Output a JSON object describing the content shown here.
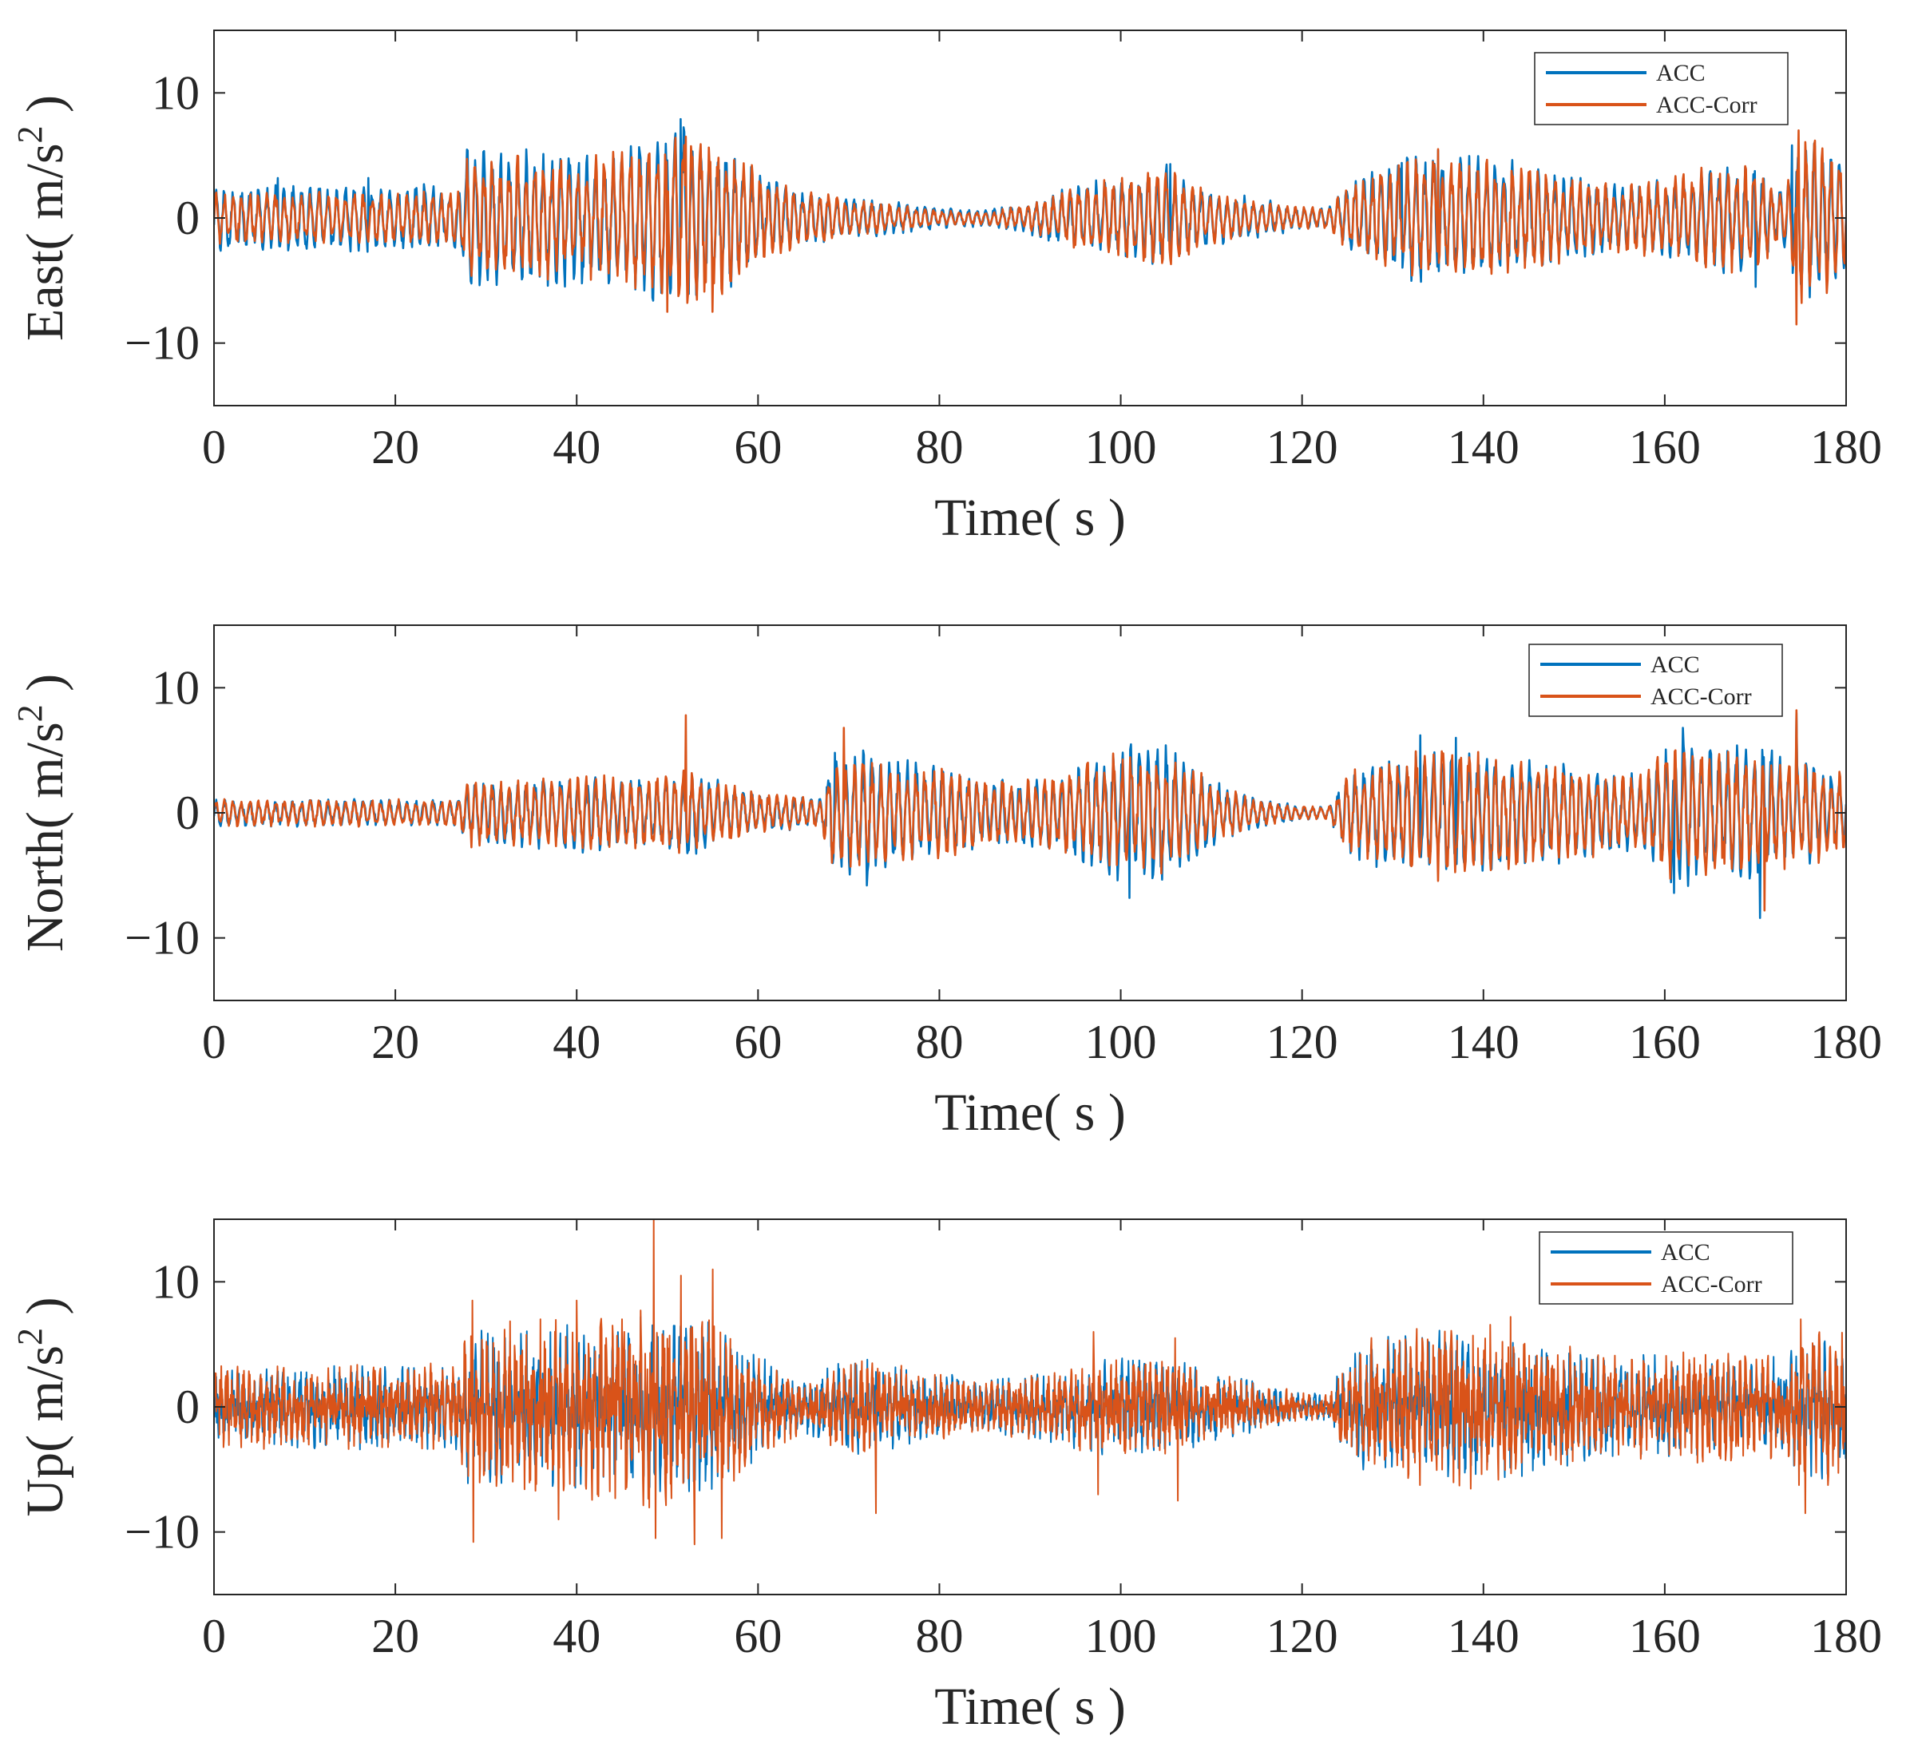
{
  "figure": {
    "panel_count": 3
  },
  "chart_data": [
    {
      "type": "line",
      "title": "",
      "xlabel": "Time( s )",
      "ylabel": "East( m/s² )",
      "ylabel_main": "East( m/s",
      "ylabel_sup": "2",
      "ylabel_end": " )",
      "xlim": [
        0,
        180
      ],
      "ylim": [
        -15,
        15
      ],
      "xticks": [
        0,
        20,
        40,
        60,
        80,
        100,
        120,
        140,
        160,
        180
      ],
      "yticks": [
        -10,
        0,
        10
      ],
      "ytick_labels": [
        "−10",
        "0",
        "10"
      ],
      "grid": false,
      "legend_position": "top-right",
      "series": [
        {
          "name": "ACC",
          "color": "#0072BD",
          "envelope": {
            "t": [
              0,
              5,
              10,
              15,
              20,
              27,
              28,
              35,
              40,
              45,
              50,
              52,
              55,
              60,
              65,
              70,
              75,
              80,
              85,
              90,
              95,
              100,
              105,
              110,
              115,
              120,
              123,
              125,
              130,
              135,
              140,
              145,
              150,
              155,
              160,
              165,
              170,
              173,
              175,
              180
            ],
            "amp": [
              2.5,
              2.5,
              2.5,
              2.5,
              2.5,
              2.5,
              5.2,
              5,
              5,
              5,
              6.5,
              7.5,
              6,
              3.5,
              2,
              1.5,
              1.2,
              0.8,
              0.6,
              1.2,
              2.5,
              3,
              4,
              2,
              1.5,
              0.8,
              0.8,
              2.5,
              4.5,
              5,
              4.5,
              4,
              3,
              2.5,
              3,
              4,
              4,
              2,
              6,
              5
            ]
          },
          "spikes": [
            [
              7,
              3.2
            ],
            [
              17,
              3.2
            ],
            [
              28,
              5.4
            ],
            [
              51.5,
              7.9
            ],
            [
              57,
              -5.5
            ],
            [
              105.5,
              4.3
            ],
            [
              131,
              4.4
            ],
            [
              135,
              5.4
            ],
            [
              170,
              -5.5
            ],
            [
              174,
              5.8
            ]
          ]
        },
        {
          "name": "ACC-Corr",
          "color": "#D95319",
          "envelope": {
            "t": [
              0,
              5,
              10,
              15,
              20,
              27,
              28,
              35,
              40,
              45,
              50,
              52,
              55,
              60,
              65,
              70,
              75,
              80,
              85,
              90,
              95,
              100,
              105,
              110,
              115,
              120,
              123,
              125,
              130,
              135,
              140,
              145,
              150,
              155,
              160,
              165,
              170,
              173,
              175,
              180
            ],
            "amp": [
              2,
              2,
              2,
              2,
              2,
              2,
              5,
              4.5,
              4.5,
              5,
              6,
              7,
              6,
              3.5,
              2,
              1.5,
              1,
              0.6,
              0.5,
              1,
              2.5,
              3,
              4,
              2,
              1.2,
              0.8,
              0.8,
              2.5,
              4,
              5,
              4.5,
              4,
              3,
              2.5,
              3,
              4,
              4,
              2,
              6.5,
              5
            ]
          },
          "spikes": [
            [
              52,
              6.5
            ],
            [
              50,
              -7.5
            ],
            [
              55,
              -7.5
            ],
            [
              174.8,
              7
            ],
            [
              174.5,
              -8.5
            ],
            [
              135,
              5.5
            ]
          ]
        }
      ]
    },
    {
      "type": "line",
      "title": "",
      "xlabel": "Time( s )",
      "ylabel": "North( m/s² )",
      "ylabel_main": "North( m/s",
      "ylabel_sup": "2",
      "ylabel_end": " )",
      "xlim": [
        0,
        180
      ],
      "ylim": [
        -15,
        15
      ],
      "xticks": [
        0,
        20,
        40,
        60,
        80,
        100,
        120,
        140,
        160,
        180
      ],
      "yticks": [
        -10,
        0,
        10
      ],
      "ytick_labels": [
        "−10",
        "0",
        "10"
      ],
      "grid": false,
      "legend_position": "top-right",
      "series": [
        {
          "name": "ACC",
          "color": "#0072BD",
          "envelope": {
            "t": [
              0,
              5,
              10,
              15,
              20,
              27,
              28,
              35,
              40,
              45,
              50,
              52,
              55,
              60,
              65,
              67,
              68,
              72,
              75,
              80,
              85,
              90,
              95,
              100,
              105,
              110,
              115,
              120,
              123,
              125,
              130,
              135,
              140,
              145,
              150,
              155,
              158,
              160,
              165,
              170,
              175,
              180
            ],
            "amp": [
              1,
              1,
              1,
              1,
              1,
              1,
              2.5,
              2.5,
              3,
              2.5,
              3,
              3.5,
              2.5,
              1.5,
              1.2,
              1.2,
              4.5,
              4.5,
              4,
              3.5,
              2.5,
              2.5,
              3.5,
              5,
              5,
              2.5,
              1.2,
              0.5,
              0.5,
              3,
              4.5,
              5,
              4.5,
              4,
              3.5,
              3,
              3,
              5.5,
              5,
              5,
              4,
              3
            ]
          },
          "spikes": [
            [
              68.5,
              4.8
            ],
            [
              72,
              -5.8
            ],
            [
              101,
              -6.8
            ],
            [
              105,
              5.4
            ],
            [
              133,
              6.2
            ],
            [
              137,
              6
            ],
            [
              161,
              -6.4
            ],
            [
              162,
              6.8
            ],
            [
              170.5,
              -8.4
            ],
            [
              174.5,
              8
            ]
          ]
        },
        {
          "name": "ACC-Corr",
          "color": "#D95319",
          "envelope": {
            "t": [
              0,
              5,
              10,
              15,
              20,
              27,
              28,
              35,
              40,
              45,
              50,
              52,
              55,
              60,
              65,
              67,
              68,
              72,
              75,
              80,
              85,
              90,
              95,
              100,
              105,
              110,
              115,
              120,
              123,
              125,
              130,
              135,
              140,
              145,
              150,
              155,
              158,
              160,
              165,
              170,
              175,
              180
            ],
            "amp": [
              1,
              1,
              1,
              1,
              1,
              1,
              2.5,
              2.5,
              3,
              2.5,
              3,
              3.5,
              2.5,
              1.5,
              1.2,
              1.2,
              4,
              4,
              3.5,
              3.5,
              2.5,
              2.5,
              3.5,
              4.5,
              4.5,
              2.5,
              1,
              0.5,
              0.5,
              3,
              4.5,
              5,
              4.5,
              4,
              3.5,
              3,
              3,
              5,
              4.5,
              4.5,
              4,
              3
            ]
          },
          "spikes": [
            [
              52,
              7.8
            ],
            [
              69.5,
              6.8
            ],
            [
              174.5,
              8.2
            ],
            [
              171,
              -7.8
            ]
          ]
        }
      ]
    },
    {
      "type": "line",
      "title": "",
      "xlabel": "Time( s )",
      "ylabel": "Up( m/s² )",
      "ylabel_main": "Up( m/s",
      "ylabel_sup": "2",
      "ylabel_end": " )",
      "xlim": [
        0,
        180
      ],
      "ylim": [
        -15,
        15
      ],
      "xticks": [
        0,
        20,
        40,
        60,
        80,
        100,
        120,
        140,
        160,
        180
      ],
      "yticks": [
        -10,
        0,
        10
      ],
      "ytick_labels": [
        "−10",
        "0",
        "10"
      ],
      "grid": false,
      "legend_position": "top-right",
      "series": [
        {
          "name": "ACC",
          "color": "#0072BD",
          "envelope": {
            "t": [
              0,
              5,
              10,
              15,
              20,
              27,
              28,
              35,
              40,
              45,
              50,
              55,
              60,
              65,
              70,
              75,
              80,
              85,
              90,
              95,
              100,
              105,
              110,
              115,
              120,
              123,
              125,
              130,
              135,
              140,
              145,
              150,
              155,
              160,
              165,
              170,
              173,
              175,
              180
            ],
            "amp": [
              2.5,
              2.5,
              2.5,
              2.5,
              2.5,
              2.5,
              4.5,
              4.5,
              5,
              5,
              5.5,
              5,
              3,
              1.5,
              3,
              2.5,
              2,
              1.5,
              2,
              2.5,
              3,
              3,
              2,
              1.5,
              0.8,
              0.8,
              3.5,
              4.5,
              4.5,
              4.5,
              4,
              3.5,
              3,
              3,
              3,
              2.5,
              2.5,
              4.5,
              4
            ]
          },
          "spikes": [
            [
              73,
              2.8
            ],
            [
              100,
              2.5
            ],
            [
              130,
              3
            ],
            [
              165,
              3
            ],
            [
              172,
              4
            ]
          ]
        },
        {
          "name": "ACC-Corr",
          "color": "#D95319",
          "envelope": {
            "t": [
              0,
              5,
              10,
              15,
              20,
              27,
              28,
              35,
              40,
              45,
              50,
              55,
              60,
              65,
              70,
              75,
              80,
              85,
              90,
              95,
              100,
              105,
              110,
              115,
              120,
              123,
              125,
              130,
              135,
              140,
              145,
              150,
              155,
              160,
              165,
              170,
              173,
              175,
              180
            ],
            "amp": [
              2.5,
              2.5,
              2.5,
              2.5,
              2.5,
              2.5,
              5,
              5,
              5.5,
              5.5,
              6.5,
              5.5,
              3,
              1.5,
              3,
              2.5,
              2,
              1.5,
              2,
              2.5,
              3,
              3,
              2,
              1.5,
              0.8,
              0.8,
              3.5,
              4.5,
              5,
              5,
              4,
              3.5,
              3,
              3,
              3.5,
              3,
              3,
              5,
              4.5
            ]
          },
          "spikes": [
            [
              28.5,
              8.5
            ],
            [
              28.6,
              -10.8
            ],
            [
              36,
              7
            ],
            [
              38,
              -9
            ],
            [
              40,
              8.5
            ],
            [
              45,
              7
            ],
            [
              48.5,
              15
            ],
            [
              48.7,
              -10.5
            ],
            [
              51.5,
              10.5
            ],
            [
              53,
              -11
            ],
            [
              55,
              11
            ],
            [
              56,
              -10.5
            ],
            [
              73,
              -8.5
            ],
            [
              97,
              6
            ],
            [
              97.5,
              -7
            ],
            [
              106,
              5.5
            ],
            [
              106.3,
              -7.5
            ],
            [
              143,
              7.2
            ],
            [
              175,
              7
            ],
            [
              175.5,
              -8.5
            ]
          ]
        }
      ]
    }
  ]
}
